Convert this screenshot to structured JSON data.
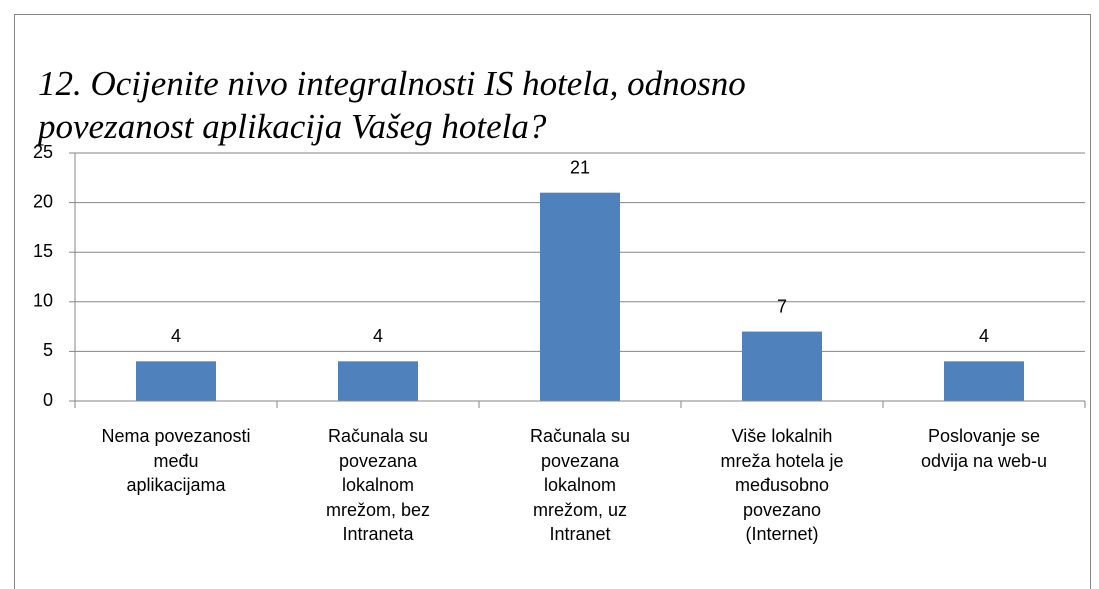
{
  "chart_data": {
    "type": "bar",
    "title": "12. Ocijenite nivo integralnosti IS hotela, odnosno\npovezanost aplikacija Vašeg hotela?",
    "categories": [
      "Nema povezanosti\nmeđu\naplikacijama",
      "Računala su\npovezana\nlokalnom\nmrežom, bez\nIntraneta",
      "Računala su\npovezana\nlokalnom\nmrežom, uz\nIntranet",
      "Više lokalnih\nmreža hotela je\nmeđusobno\npovezano\n(Internet)",
      "Poslovanje se\nodvija na web-u"
    ],
    "values": [
      4,
      4,
      21,
      7,
      4
    ],
    "color": "#4f81bd",
    "ylim": [
      0,
      25
    ],
    "yticks": [
      0,
      5,
      10,
      15,
      20,
      25
    ],
    "grid": true
  }
}
